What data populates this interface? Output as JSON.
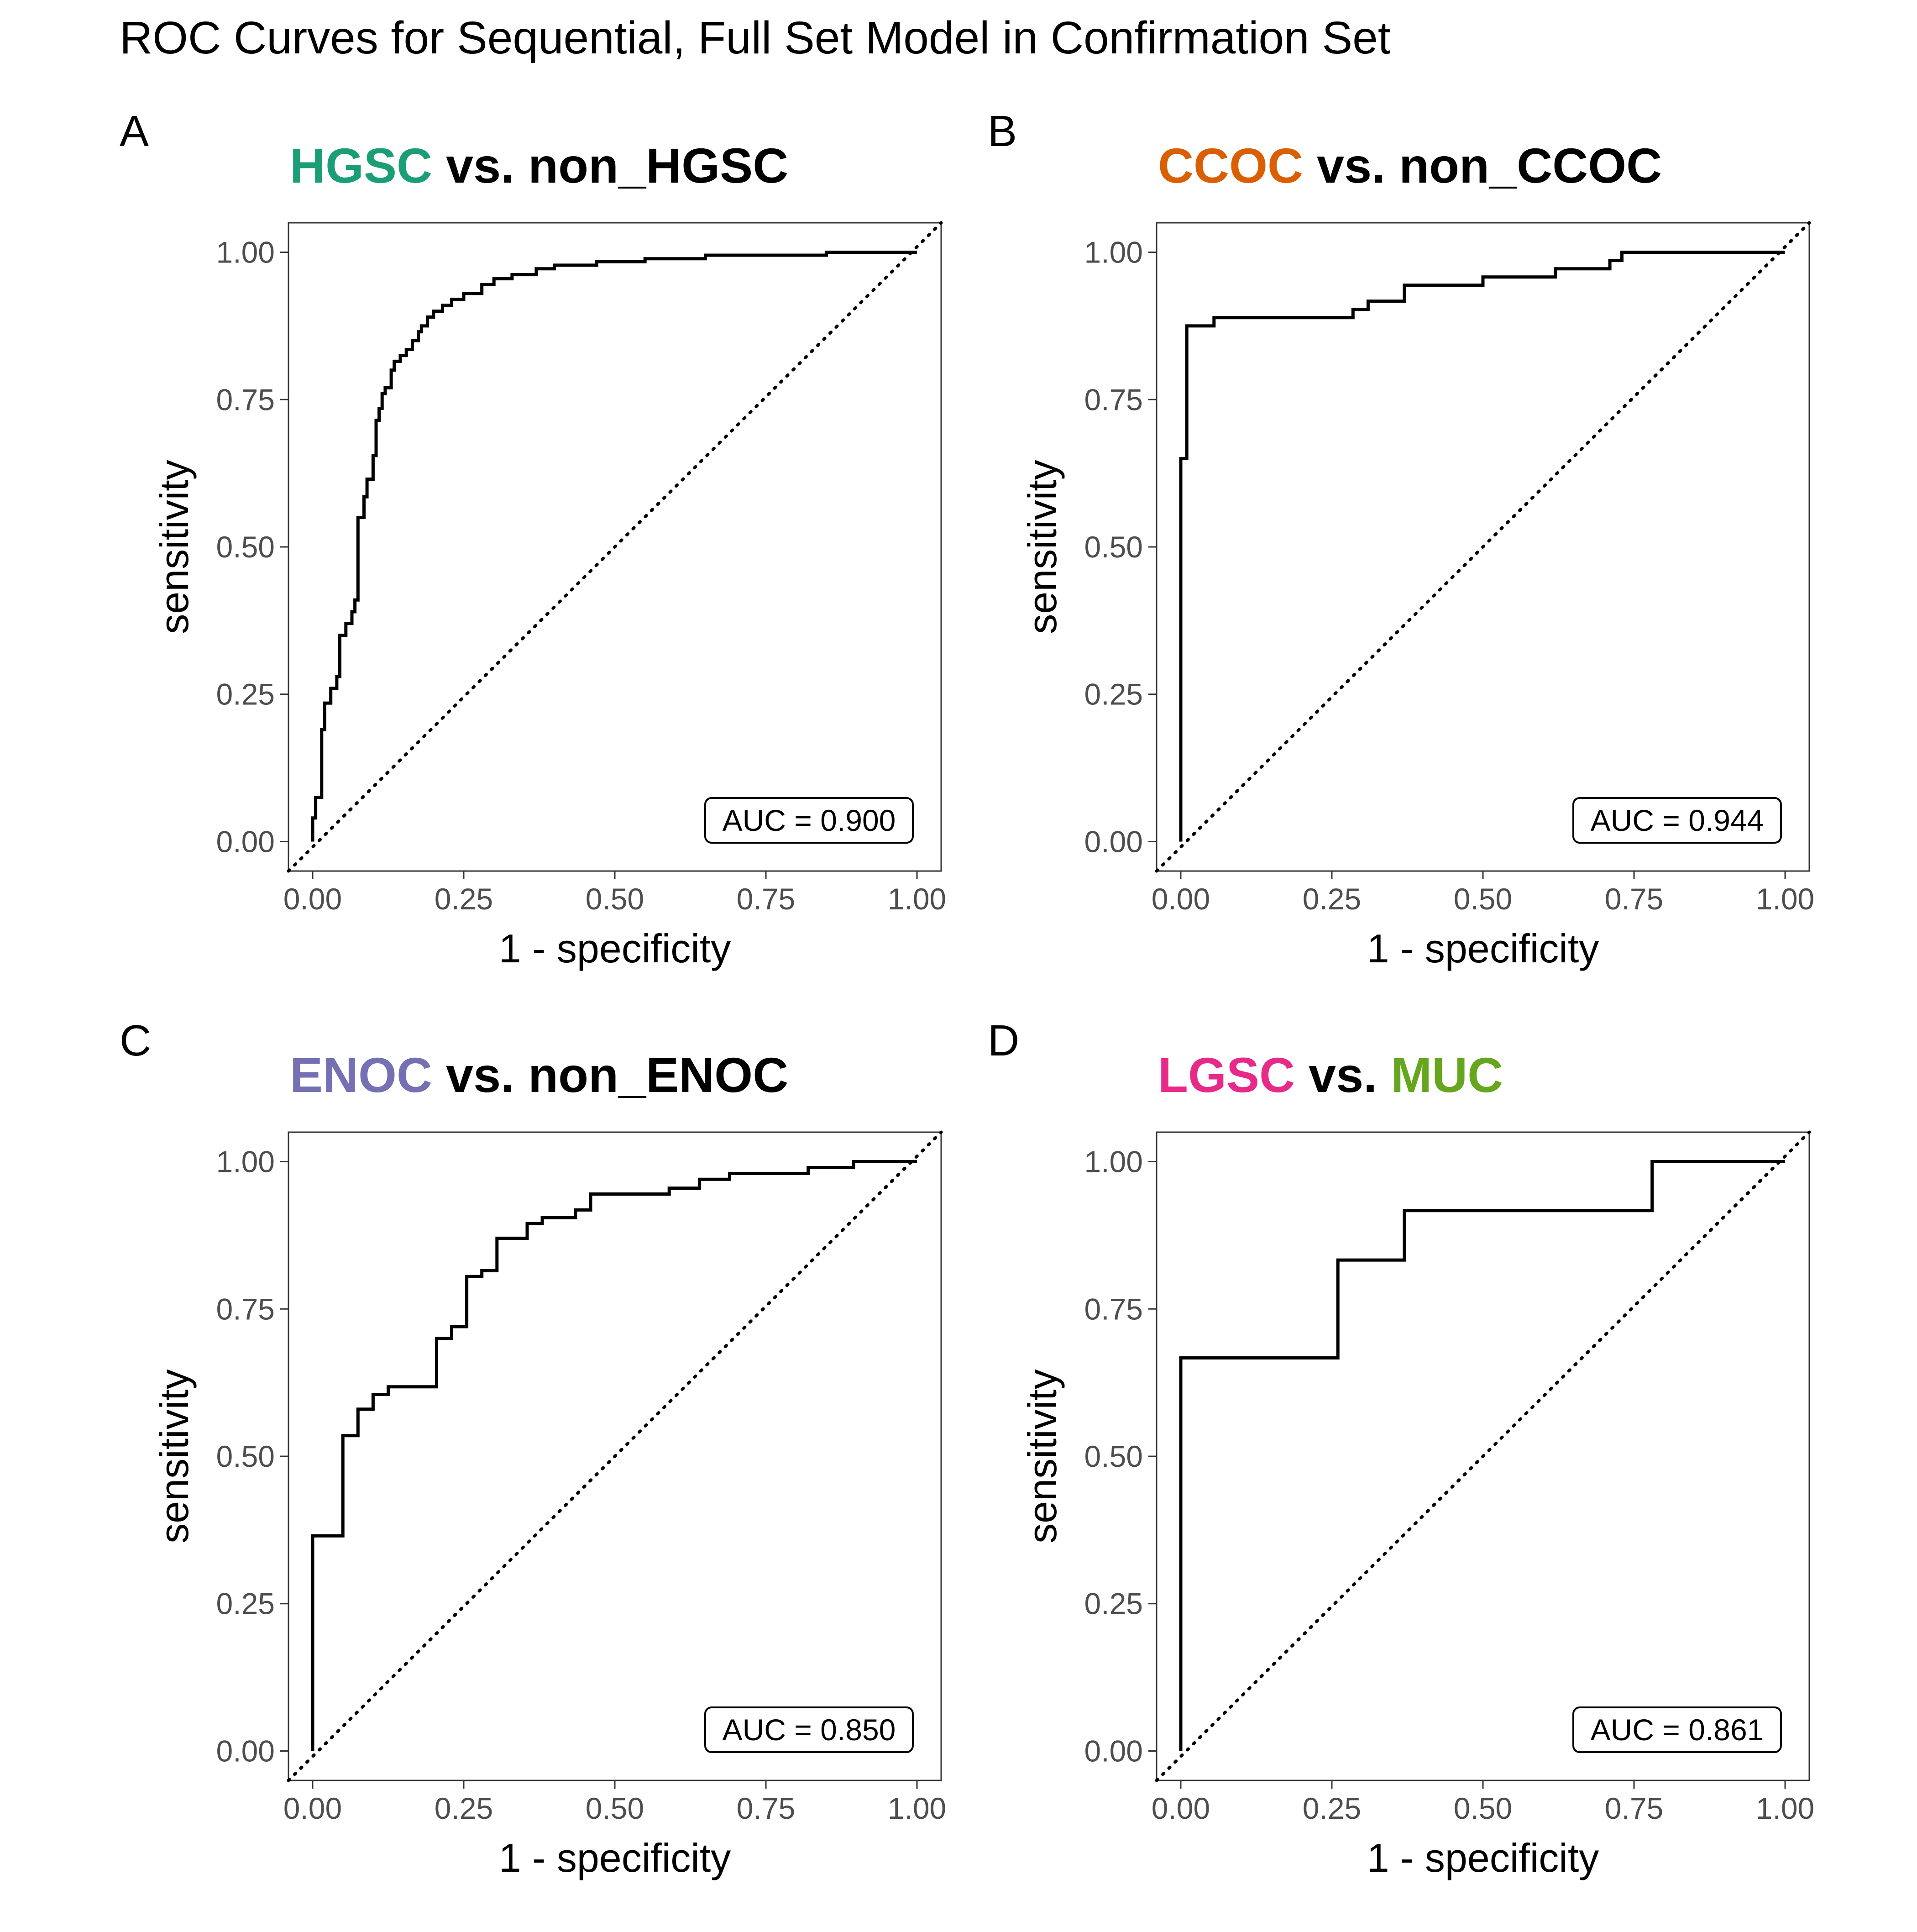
{
  "title": "ROC Curves for Sequential, Full Set Model in Confirmation Set",
  "colors": {
    "HGSC": "#1b9e77",
    "CCOC": "#d95f02",
    "ENOC": "#7570b3",
    "LGSC": "#e7298a",
    "MUC": "#66a61e",
    "curve": "#000000",
    "diagonal": "#000000"
  },
  "chart_data": [
    {
      "type": "line",
      "panel": "A",
      "title_parts": [
        {
          "text": "HGSC",
          "color": "#1b9e77"
        },
        {
          "text": " vs. non_HGSC",
          "color": "#000000"
        }
      ],
      "xlabel": "1 - specificity",
      "ylabel": "sensitivity",
      "xlim": [
        -0.04,
        1.04
      ],
      "ylim": [
        -0.05,
        1.05
      ],
      "xticks": [
        "0.00",
        "0.25",
        "0.50",
        "0.75",
        "1.00"
      ],
      "yticks": [
        "0.00",
        "0.25",
        "0.50",
        "0.75",
        "1.00"
      ],
      "annotation": "AUC = 0.900",
      "diagonal": "dotted",
      "series": [
        {
          "step": true,
          "points": [
            [
              0,
              0
            ],
            [
              0,
              0.04
            ],
            [
              0.005,
              0.04
            ],
            [
              0.005,
              0.075
            ],
            [
              0.015,
              0.075
            ],
            [
              0.015,
              0.19
            ],
            [
              0.02,
              0.19
            ],
            [
              0.02,
              0.235
            ],
            [
              0.03,
              0.235
            ],
            [
              0.03,
              0.26
            ],
            [
              0.04,
              0.26
            ],
            [
              0.04,
              0.28
            ],
            [
              0.045,
              0.28
            ],
            [
              0.045,
              0.35
            ],
            [
              0.055,
              0.35
            ],
            [
              0.055,
              0.37
            ],
            [
              0.065,
              0.37
            ],
            [
              0.065,
              0.39
            ],
            [
              0.07,
              0.39
            ],
            [
              0.07,
              0.41
            ],
            [
              0.075,
              0.41
            ],
            [
              0.075,
              0.55
            ],
            [
              0.085,
              0.55
            ],
            [
              0.085,
              0.585
            ],
            [
              0.09,
              0.585
            ],
            [
              0.09,
              0.615
            ],
            [
              0.1,
              0.615
            ],
            [
              0.1,
              0.655
            ],
            [
              0.105,
              0.655
            ],
            [
              0.105,
              0.715
            ],
            [
              0.11,
              0.715
            ],
            [
              0.11,
              0.735
            ],
            [
              0.115,
              0.735
            ],
            [
              0.115,
              0.76
            ],
            [
              0.12,
              0.76
            ],
            [
              0.12,
              0.77
            ],
            [
              0.13,
              0.77
            ],
            [
              0.13,
              0.8
            ],
            [
              0.135,
              0.8
            ],
            [
              0.135,
              0.815
            ],
            [
              0.145,
              0.815
            ],
            [
              0.145,
              0.825
            ],
            [
              0.155,
              0.825
            ],
            [
              0.155,
              0.835
            ],
            [
              0.165,
              0.835
            ],
            [
              0.165,
              0.85
            ],
            [
              0.175,
              0.85
            ],
            [
              0.175,
              0.865
            ],
            [
              0.18,
              0.865
            ],
            [
              0.18,
              0.875
            ],
            [
              0.19,
              0.875
            ],
            [
              0.19,
              0.89
            ],
            [
              0.2,
              0.89
            ],
            [
              0.2,
              0.9
            ],
            [
              0.215,
              0.9
            ],
            [
              0.215,
              0.91
            ],
            [
              0.23,
              0.91
            ],
            [
              0.23,
              0.92
            ],
            [
              0.25,
              0.92
            ],
            [
              0.25,
              0.93
            ],
            [
              0.28,
              0.93
            ],
            [
              0.28,
              0.945
            ],
            [
              0.3,
              0.945
            ],
            [
              0.3,
              0.955
            ],
            [
              0.33,
              0.955
            ],
            [
              0.33,
              0.962
            ],
            [
              0.37,
              0.962
            ],
            [
              0.37,
              0.972
            ],
            [
              0.4,
              0.972
            ],
            [
              0.4,
              0.978
            ],
            [
              0.47,
              0.978
            ],
            [
              0.47,
              0.984
            ],
            [
              0.55,
              0.984
            ],
            [
              0.55,
              0.989
            ],
            [
              0.65,
              0.989
            ],
            [
              0.65,
              0.995
            ],
            [
              0.85,
              0.995
            ],
            [
              0.85,
              1.0
            ],
            [
              1.0,
              1.0
            ]
          ]
        }
      ]
    },
    {
      "type": "line",
      "panel": "B",
      "title_parts": [
        {
          "text": "CCOC",
          "color": "#d95f02"
        },
        {
          "text": " vs. non_CCOC",
          "color": "#000000"
        }
      ],
      "xlabel": "1 - specificity",
      "ylabel": "sensitivity",
      "xlim": [
        -0.04,
        1.04
      ],
      "ylim": [
        -0.05,
        1.05
      ],
      "xticks": [
        "0.00",
        "0.25",
        "0.50",
        "0.75",
        "1.00"
      ],
      "yticks": [
        "0.00",
        "0.25",
        "0.50",
        "0.75",
        "1.00"
      ],
      "annotation": "AUC = 0.944",
      "diagonal": "dotted",
      "series": [
        {
          "step": true,
          "points": [
            [
              0,
              0
            ],
            [
              0,
              0.65
            ],
            [
              0.01,
              0.65
            ],
            [
              0.01,
              0.875
            ],
            [
              0.055,
              0.875
            ],
            [
              0.055,
              0.889
            ],
            [
              0.285,
              0.889
            ],
            [
              0.285,
              0.903
            ],
            [
              0.31,
              0.903
            ],
            [
              0.31,
              0.917
            ],
            [
              0.37,
              0.917
            ],
            [
              0.37,
              0.944
            ],
            [
              0.5,
              0.944
            ],
            [
              0.5,
              0.958
            ],
            [
              0.62,
              0.958
            ],
            [
              0.62,
              0.972
            ],
            [
              0.71,
              0.972
            ],
            [
              0.71,
              0.986
            ],
            [
              0.73,
              0.986
            ],
            [
              0.73,
              1.0
            ],
            [
              1.0,
              1.0
            ]
          ]
        }
      ]
    },
    {
      "type": "line",
      "panel": "C",
      "title_parts": [
        {
          "text": "ENOC",
          "color": "#7570b3"
        },
        {
          "text": " vs. non_ENOC",
          "color": "#000000"
        }
      ],
      "xlabel": "1 - specificity",
      "ylabel": "sensitivity",
      "xlim": [
        -0.04,
        1.04
      ],
      "ylim": [
        -0.05,
        1.05
      ],
      "xticks": [
        "0.00",
        "0.25",
        "0.50",
        "0.75",
        "1.00"
      ],
      "yticks": [
        "0.00",
        "0.25",
        "0.50",
        "0.75",
        "1.00"
      ],
      "annotation": "AUC = 0.850",
      "diagonal": "dotted",
      "series": [
        {
          "step": true,
          "points": [
            [
              0,
              0
            ],
            [
              0,
              0.365
            ],
            [
              0.05,
              0.365
            ],
            [
              0.05,
              0.535
            ],
            [
              0.075,
              0.535
            ],
            [
              0.075,
              0.58
            ],
            [
              0.1,
              0.58
            ],
            [
              0.1,
              0.605
            ],
            [
              0.125,
              0.605
            ],
            [
              0.125,
              0.618
            ],
            [
              0.205,
              0.618
            ],
            [
              0.205,
              0.7
            ],
            [
              0.23,
              0.7
            ],
            [
              0.23,
              0.72
            ],
            [
              0.255,
              0.72
            ],
            [
              0.255,
              0.805
            ],
            [
              0.28,
              0.805
            ],
            [
              0.28,
              0.815
            ],
            [
              0.305,
              0.815
            ],
            [
              0.305,
              0.87
            ],
            [
              0.355,
              0.87
            ],
            [
              0.355,
              0.895
            ],
            [
              0.38,
              0.895
            ],
            [
              0.38,
              0.905
            ],
            [
              0.435,
              0.905
            ],
            [
              0.435,
              0.918
            ],
            [
              0.46,
              0.918
            ],
            [
              0.46,
              0.945
            ],
            [
              0.59,
              0.945
            ],
            [
              0.59,
              0.955
            ],
            [
              0.64,
              0.955
            ],
            [
              0.64,
              0.97
            ],
            [
              0.69,
              0.97
            ],
            [
              0.69,
              0.98
            ],
            [
              0.82,
              0.98
            ],
            [
              0.82,
              0.99
            ],
            [
              0.895,
              0.99
            ],
            [
              0.895,
              1.0
            ],
            [
              1.0,
              1.0
            ]
          ]
        }
      ]
    },
    {
      "type": "line",
      "panel": "D",
      "title_parts": [
        {
          "text": "LGSC",
          "color": "#e7298a"
        },
        {
          "text": " vs. ",
          "color": "#000000"
        },
        {
          "text": "MUC",
          "color": "#66a61e"
        }
      ],
      "xlabel": "1 - specificity",
      "ylabel": "sensitivity",
      "xlim": [
        -0.04,
        1.04
      ],
      "ylim": [
        -0.05,
        1.05
      ],
      "xticks": [
        "0.00",
        "0.25",
        "0.50",
        "0.75",
        "1.00"
      ],
      "yticks": [
        "0.00",
        "0.25",
        "0.50",
        "0.75",
        "1.00"
      ],
      "annotation": "AUC = 0.861",
      "diagonal": "dotted",
      "series": [
        {
          "step": true,
          "points": [
            [
              0,
              0
            ],
            [
              0,
              0.667
            ],
            [
              0.26,
              0.667
            ],
            [
              0.26,
              0.833
            ],
            [
              0.37,
              0.833
            ],
            [
              0.37,
              0.917
            ],
            [
              0.78,
              0.917
            ],
            [
              0.78,
              1.0
            ],
            [
              1.0,
              1.0
            ]
          ]
        }
      ]
    }
  ]
}
